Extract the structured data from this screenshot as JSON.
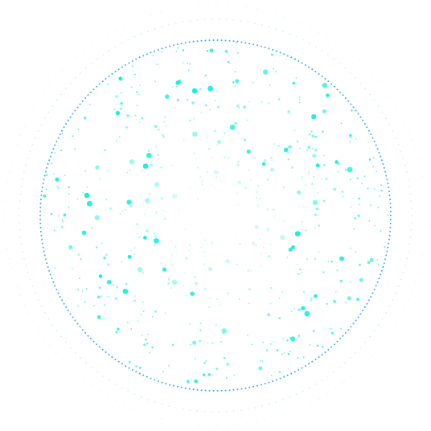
{
  "colors": {
    "background": "#ffffff",
    "particle": "#12f0d8",
    "ring_inner": "#1aa7ff",
    "ring_outer": "#6fd9ff"
  },
  "visual": {
    "kind": "particle-orb",
    "particle_count_estimate": 520,
    "dotted_rings": 3
  }
}
